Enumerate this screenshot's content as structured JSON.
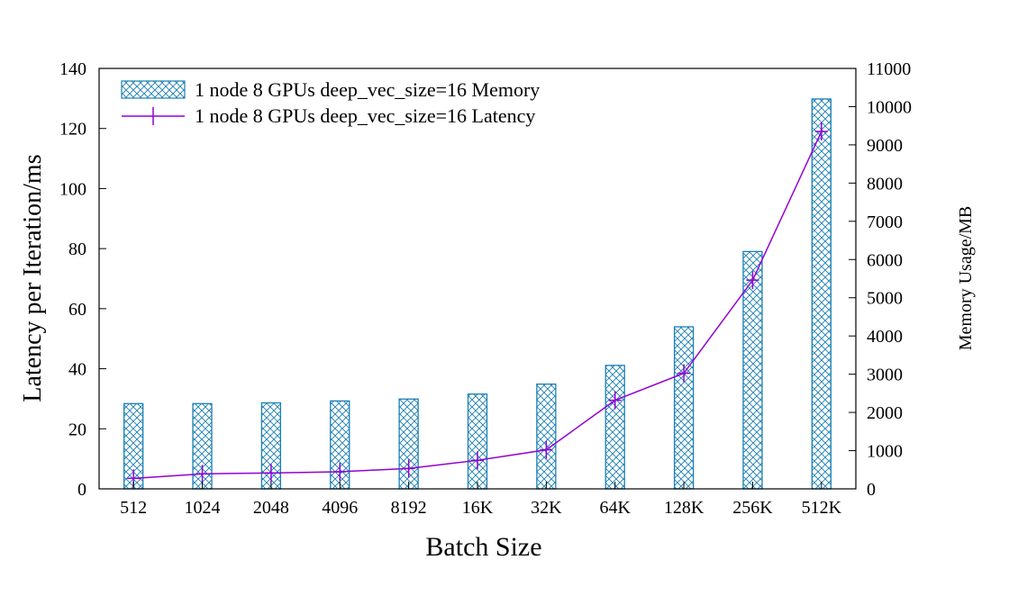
{
  "chart_data": {
    "type": "bar",
    "categories": [
      "512",
      "1024",
      "2048",
      "4096",
      "8192",
      "16K",
      "32K",
      "64K",
      "128K",
      "256K",
      "512K"
    ],
    "xlabel": "Batch Size",
    "ylabel": "Latency per Iteration/ms",
    "y2label": "Memory Usage/MB",
    "ylim": [
      0,
      140
    ],
    "y2lim": [
      0,
      11000
    ],
    "yticks": [
      0,
      20,
      40,
      60,
      80,
      100,
      120,
      140
    ],
    "y2ticks": [
      0,
      1000,
      2000,
      3000,
      4000,
      5000,
      6000,
      7000,
      8000,
      9000,
      10000,
      11000
    ],
    "legend_position": "top-left",
    "series": [
      {
        "name": "1 node 8 GPUs deep_vec_size=16 Memory",
        "kind": "bar",
        "axis": "right",
        "color": "#1a7fb5",
        "pattern": "crosshatch",
        "values": [
          2230,
          2230,
          2250,
          2300,
          2350,
          2480,
          2740,
          3230,
          4240,
          6210,
          10200
        ]
      },
      {
        "name": "1 node 8 GPUs deep_vec_size=16 Latency",
        "kind": "line",
        "axis": "left",
        "color": "#9400d3",
        "marker": "plus",
        "values": [
          3.5,
          5.0,
          5.3,
          5.7,
          6.8,
          9.5,
          13.0,
          29.5,
          38.5,
          69.5,
          119.0
        ]
      }
    ]
  }
}
